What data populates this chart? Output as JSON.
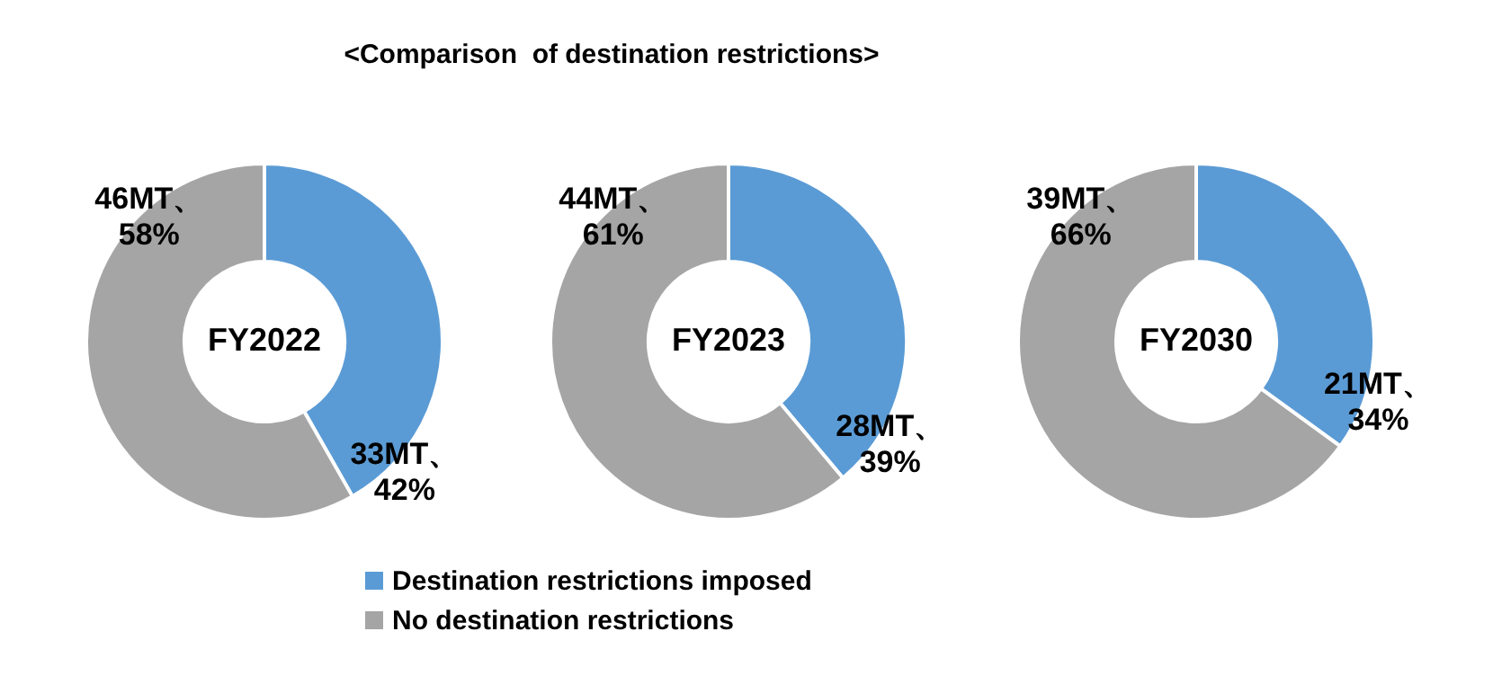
{
  "chart_data": [
    {
      "type": "donut",
      "title": "FY2022",
      "annotations": [
        "<Comparison  of destination restrictions>"
      ],
      "categories": [
        "Destination restrictions imposed",
        "No destination restrictions"
      ],
      "values": [
        33,
        46
      ],
      "value_labels": [
        "33MT、42%",
        "46MT、58%"
      ],
      "colors": [
        "#5b9bd5",
        "#a5a5a5"
      ],
      "legend": "bottom"
    },
    {
      "type": "donut",
      "title": "FY2023",
      "categories": [
        null,
        null
      ],
      "values": [
        28,
        44
      ],
      "value_labels": [
        "28MT、39%",
        "44MT、61%"
      ],
      "colors": [
        "#5b9bd5",
        "#a5a5a5"
      ]
    },
    {
      "type": "donut",
      "title": "FY2030",
      "categories": [
        null,
        null
      ],
      "values": [
        21,
        39
      ],
      "value_labels": [
        "21MT、34%",
        "39MT、66%"
      ],
      "colors": [
        "#5b9bd5",
        "#a5a5a5"
      ]
    }
  ]
}
